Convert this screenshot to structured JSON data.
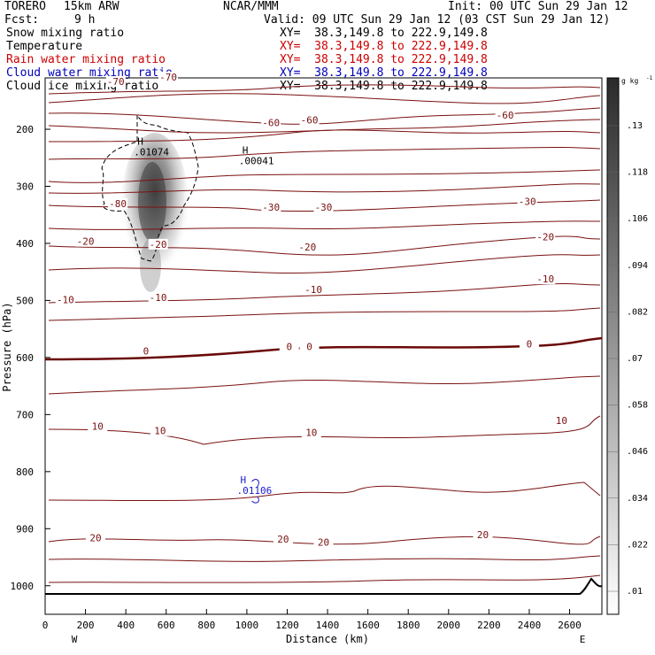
{
  "header": {
    "model": "TORERO",
    "resolution": "15km ARW",
    "org": "NCAR/MMM",
    "init": "Init: 00 UTC Sun 29 Jan 12",
    "fcst_label": "Fcst:",
    "fcst_value": "9 h",
    "valid": "Valid: 09 UTC Sun 29 Jan 12 (03 CST Sun 29 Jan 12)"
  },
  "legend": [
    {
      "name": "Snow mixing ratio",
      "xy": "XY=  38.3,149.8 to 222.9,149.8",
      "color": "#000000",
      "xy_color": "#000000"
    },
    {
      "name": "Temperature",
      "xy": "XY=  38.3,149.8 to 222.9,149.8",
      "color": "#000000",
      "xy_color": "#cc0000"
    },
    {
      "name": "Rain water mixing ratio",
      "xy": "XY=  38.3,149.8 to 222.9,149.8",
      "color": "#cc0000",
      "xy_color": "#cc0000"
    },
    {
      "name": "Cloud water mixing ratio",
      "xy": "XY=  38.3,149.8 to 222.9,149.8",
      "color": "#0000bb",
      "xy_color": "#0000bb"
    },
    {
      "name": "Cloud ice mixing ratio",
      "xy": "XY=  38.3,149.8 to 222.9,149.8",
      "color": "#000000",
      "xy_color": "#000000"
    }
  ],
  "colors": {
    "temperature": "#7a1010",
    "cloud_water": "#1a1acc",
    "ice": "#000000",
    "terrain": "#000000"
  },
  "chart_data": {
    "type": "contour",
    "xlabel": "Distance (km)",
    "ylabel": "Pressure (hPa)",
    "xlim": [
      0,
      2760
    ],
    "ylim": [
      1050,
      110
    ],
    "x_ticks": [
      0,
      200,
      400,
      600,
      800,
      1000,
      1200,
      1400,
      1600,
      1800,
      2000,
      2200,
      2400,
      2600
    ],
    "y_ticks": [
      200,
      300,
      400,
      500,
      600,
      700,
      800,
      900,
      1000
    ],
    "x_end_labels": {
      "left": "W",
      "right": "E"
    },
    "colorbar": {
      "units": "g kg",
      "units_exp": "-1",
      "ticks": [
        ".13",
        ".118",
        ".106",
        ".094",
        ".082",
        ".07",
        ".058",
        ".046",
        ".034",
        ".022",
        ".01"
      ]
    },
    "temperature_labels": [
      {
        "text": "-70",
        "x": 350,
        "p": 118
      },
      {
        "text": "-70",
        "x": 610,
        "p": 110
      },
      {
        "text": "-60",
        "x": 1120,
        "p": 190
      },
      {
        "text": "-60",
        "x": 1310,
        "p": 185
      },
      {
        "text": "-60",
        "x": 2280,
        "p": 177
      },
      {
        "text": "-80",
        "x": 360,
        "p": 332
      },
      {
        "text": "-30",
        "x": 1120,
        "p": 338
      },
      {
        "text": "-30",
        "x": 1380,
        "p": 338
      },
      {
        "text": "-30",
        "x": 2390,
        "p": 328
      },
      {
        "text": "-20",
        "x": 200,
        "p": 398
      },
      {
        "text": "-20",
        "x": 560,
        "p": 403
      },
      {
        "text": "-20",
        "x": 1300,
        "p": 408
      },
      {
        "text": "-20",
        "x": 2480,
        "p": 390
      },
      {
        "text": "-10",
        "x": 1330,
        "p": 482
      },
      {
        "text": "-10",
        "x": 2480,
        "p": 464
      },
      {
        "text": "-10",
        "x": 100,
        "p": 500
      },
      {
        "text": "-10",
        "x": 560,
        "p": 496
      },
      {
        "text": "0",
        "x": 500,
        "p": 590
      },
      {
        "text": "0",
        "x": 1210,
        "p": 582
      },
      {
        "text": "0",
        "x": 1310,
        "p": 582
      },
      {
        "text": "0",
        "x": 2400,
        "p": 578
      },
      {
        "text": "10",
        "x": 260,
        "p": 722
      },
      {
        "text": "10",
        "x": 570,
        "p": 730
      },
      {
        "text": "10",
        "x": 1320,
        "p": 733
      },
      {
        "text": "10",
        "x": 2560,
        "p": 712
      },
      {
        "text": "20",
        "x": 250,
        "p": 917
      },
      {
        "text": "20",
        "x": 1180,
        "p": 920
      },
      {
        "text": "20",
        "x": 1380,
        "p": 925
      },
      {
        "text": "20",
        "x": 2170,
        "p": 912
      }
    ],
    "max_markers": [
      {
        "label": "H",
        "value": ".01074",
        "x": 440,
        "p": 243,
        "color": "#000000"
      },
      {
        "label": "H",
        "value": ".00041",
        "x": 960,
        "p": 258,
        "color": "#000000"
      },
      {
        "label": "H",
        "value": ".01106",
        "x": 950,
        "p": 836,
        "color": "#1a1acc"
      }
    ]
  }
}
